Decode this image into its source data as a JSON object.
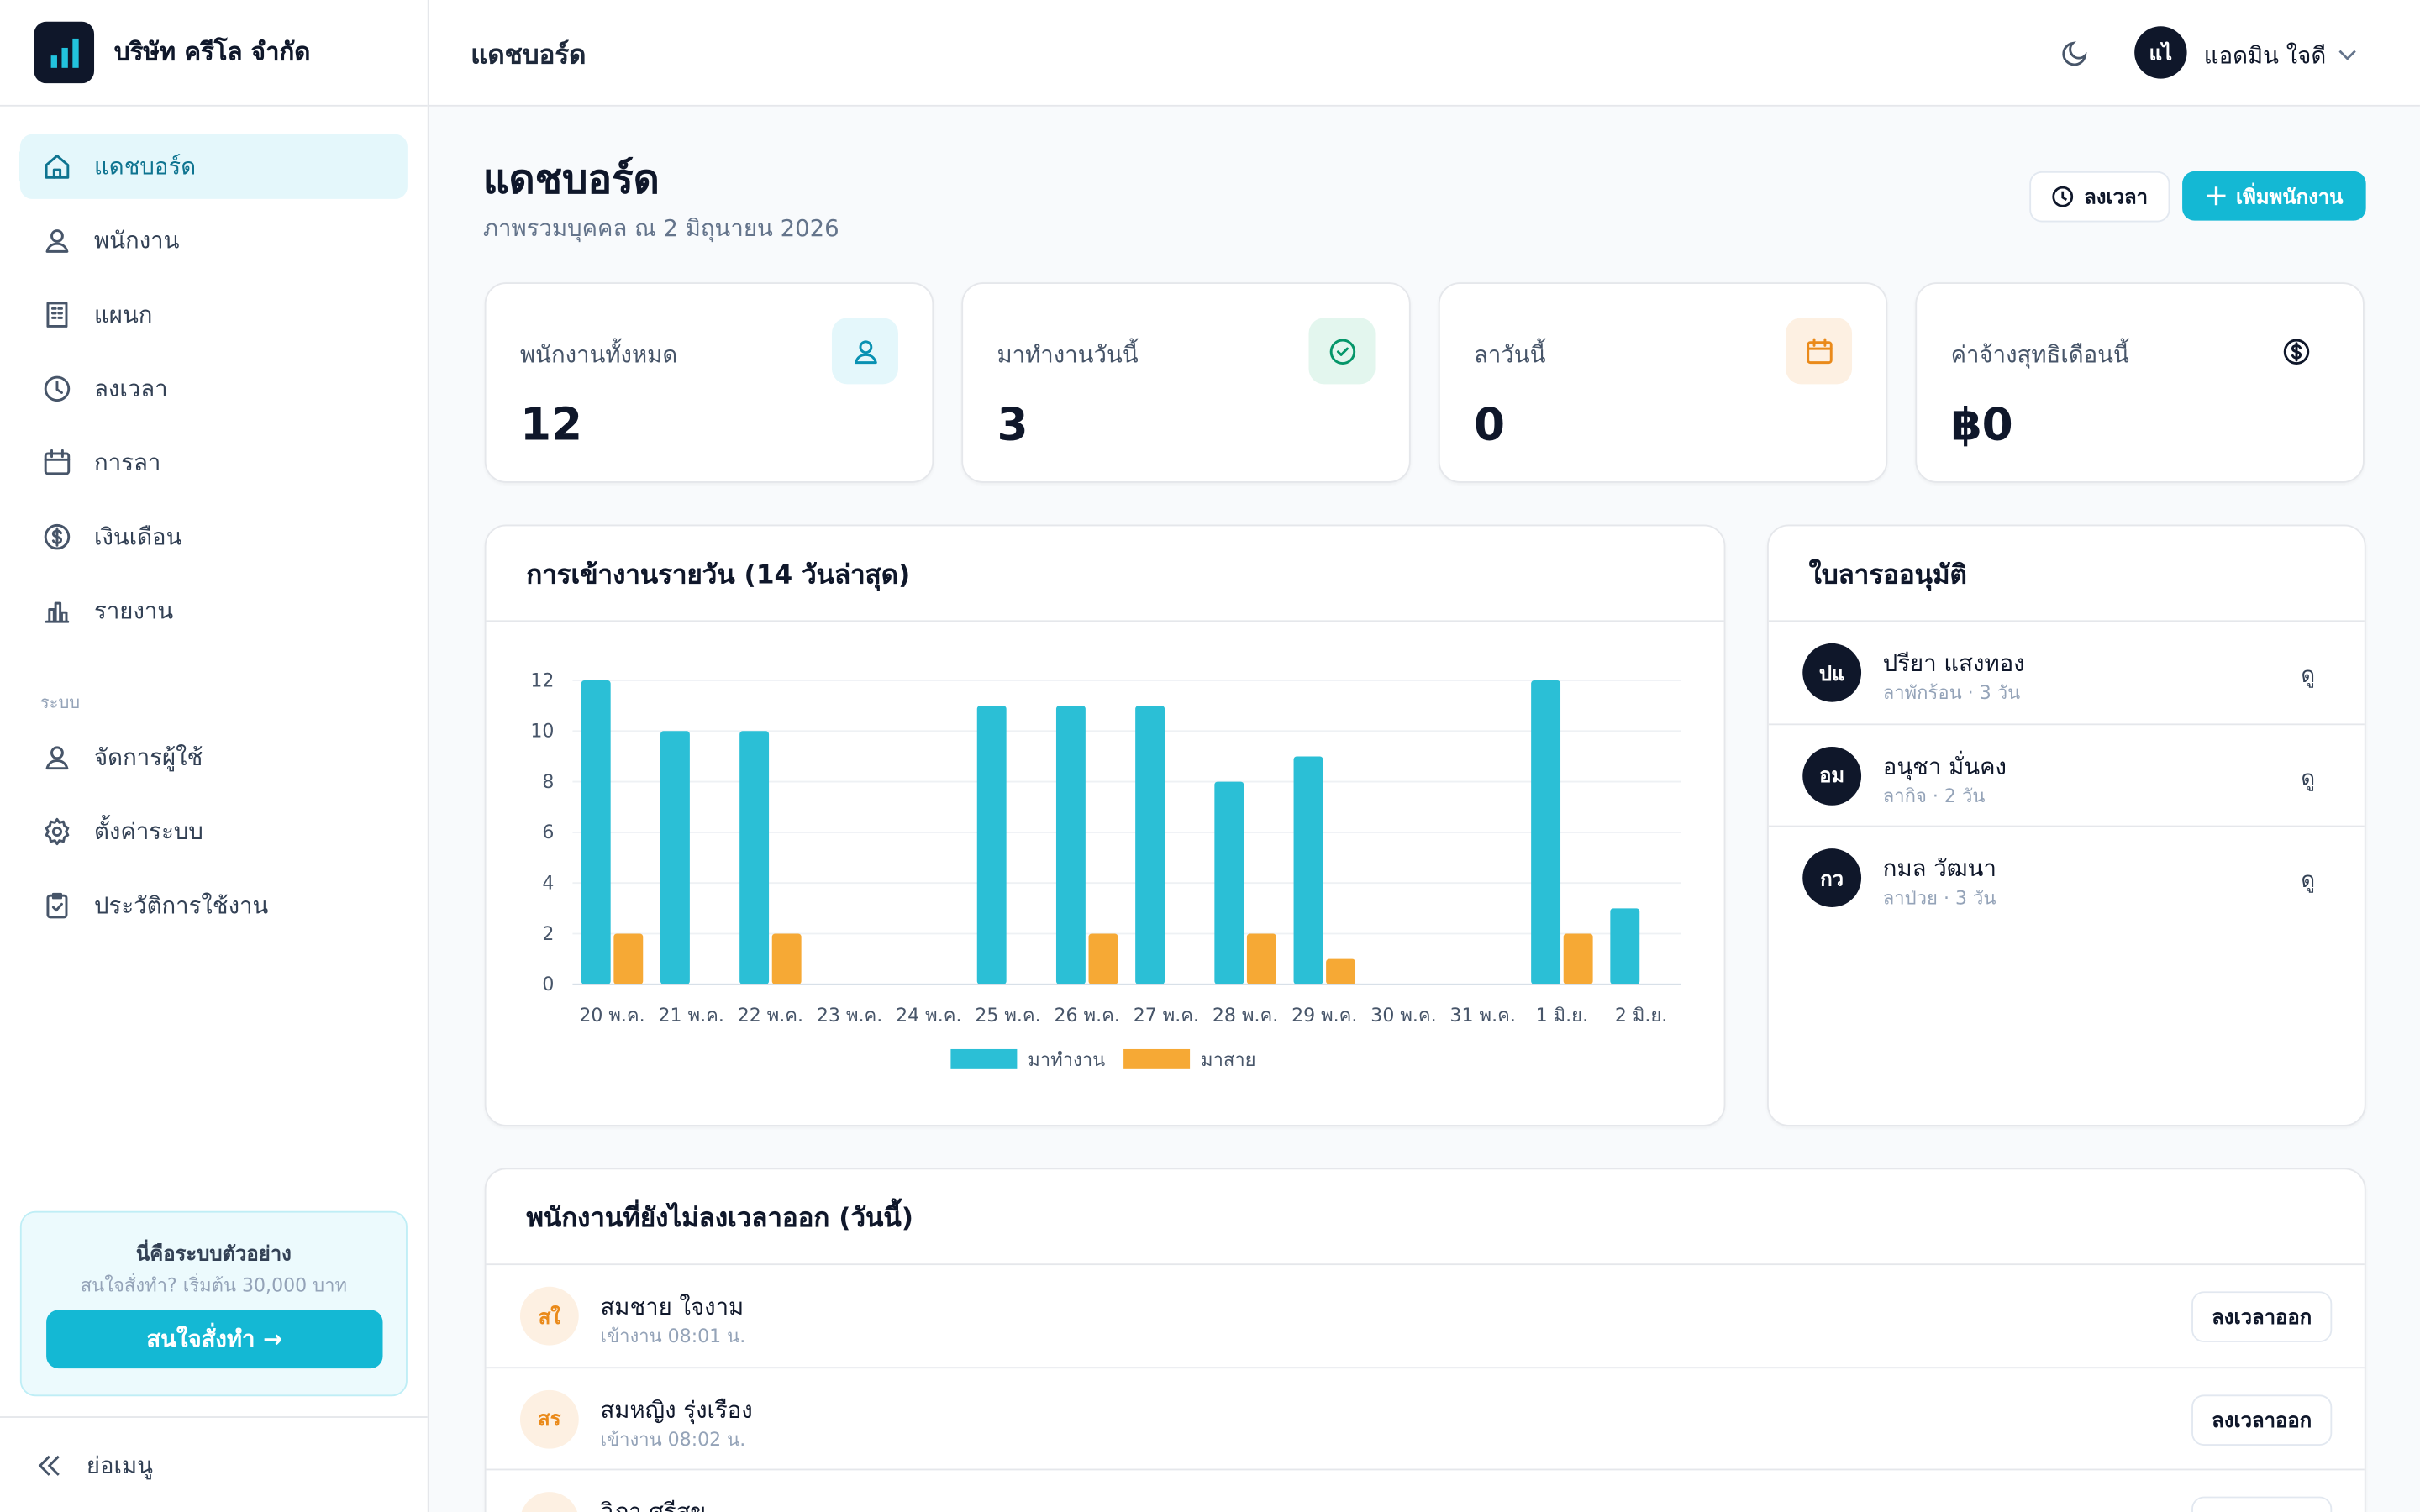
{
  "sidebar": {
    "company": "บริษัท ครีโล จำกัด",
    "nav": [
      "แดชบอร์ด",
      "พนักงาน",
      "แผนก",
      "ลงเวลา",
      "การลา",
      "เงินเดือน",
      "รายงาน"
    ],
    "section_label": "ระบบ",
    "system_nav": [
      "จัดการผู้ใช้",
      "ตั้งค่าระบบ",
      "ประวัติการใช้งาน"
    ],
    "promo": {
      "title": "นี่คือระบบตัวอย่าง",
      "text": "สนใจสั่งทำ? เริ่มต้น 30,000 บาท",
      "button": "สนใจสั่งทำ →"
    },
    "collapse": "ย่อเมนู"
  },
  "header": {
    "title": "แดชบอร์ด",
    "avatar": "แไ",
    "user": "แอดมิน ใจดี"
  },
  "page": {
    "title": "แดชบอร์ด",
    "subtitle": "ภาพรวมบุคคล ณ 2 มิถุนายน 2026",
    "buttons": [
      "ลงเวลา",
      "เพิ่มพนักงาน"
    ]
  },
  "stats": [
    {
      "label": "พนักงานทั้งหมด",
      "value": "12"
    },
    {
      "label": "มาทำงานวันนี้",
      "value": "3"
    },
    {
      "label": "ลาวันนี้",
      "value": "0"
    },
    {
      "label": "ค่าจ้างสุทธิเดือนนี้",
      "value": "฿0"
    }
  ],
  "attendance_chart": {
    "type": "bar",
    "title": "การเข้างานรายวัน (14 วันล่าสุด)",
    "categories": [
      "20 พ.ค.",
      "21 พ.ค.",
      "22 พ.ค.",
      "23 พ.ค.",
      "24 พ.ค.",
      "25 พ.ค.",
      "26 พ.ค.",
      "27 พ.ค.",
      "28 พ.ค.",
      "29 พ.ค.",
      "30 พ.ค.",
      "31 พ.ค.",
      "1 มิ.ย.",
      "2 มิ.ย."
    ],
    "series": [
      {
        "name": "มาทำงาน",
        "color": "#2bbfd6",
        "values": [
          12,
          10,
          10,
          0,
          0,
          11,
          11,
          11,
          8,
          9,
          0,
          0,
          12,
          3
        ]
      },
      {
        "name": "มาสาย",
        "color": "#f6a935",
        "values": [
          2,
          0,
          2,
          0,
          0,
          0,
          2,
          0,
          2,
          1,
          0,
          0,
          2,
          0
        ]
      }
    ],
    "ylim": [
      0,
      12
    ],
    "yticks": [
      0,
      2,
      4,
      6,
      8,
      10,
      12
    ],
    "grid": true
  },
  "leave_requests": {
    "title": "ใบลารออนุมัติ",
    "rows": [
      {
        "initials": "ปแ",
        "name": "ปรียา แสงทอง",
        "detail": "ลาพักร้อน · 3 วัน",
        "action": "ดู"
      },
      {
        "initials": "อม",
        "name": "อนุชา มั่นคง",
        "detail": "ลากิจ · 2 วัน",
        "action": "ดู"
      },
      {
        "initials": "กว",
        "name": "กมล วัฒนา",
        "detail": "ลาป่วย · 3 วัน",
        "action": "ดู"
      }
    ]
  },
  "not_clocked_out": {
    "title": "พนักงานที่ยังไม่ลงเวลาออก (วันนี้)",
    "rows": [
      {
        "initials": "สใ",
        "name": "สมชาย ใจงาม",
        "detail": "เข้างาน 08:01 น.",
        "action": "ลงเวลาออก"
      },
      {
        "initials": "สร",
        "name": "สมหญิง รุ่งเรือง",
        "detail": "เข้างาน 08:02 น.",
        "action": "ลงเวลาออก"
      },
      {
        "name": "วิภา ศรีสุข"
      }
    ]
  }
}
